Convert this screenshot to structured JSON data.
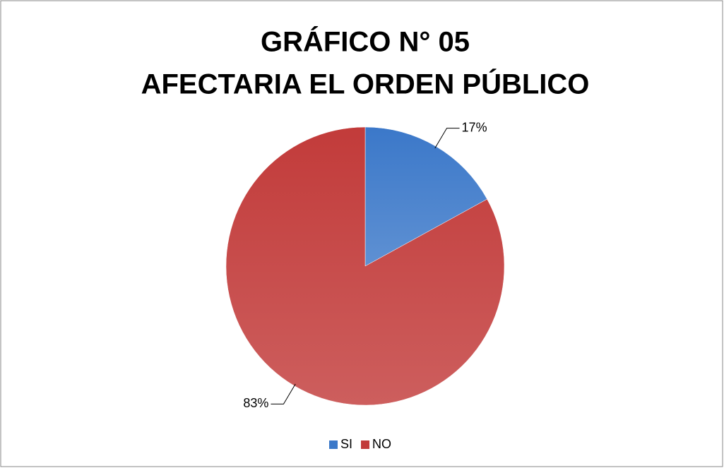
{
  "chart_data": {
    "type": "pie",
    "title": [
      "GRÁFICO N° 05",
      "AFECTARIA EL ORDEN PÚBLICO"
    ],
    "categories": [
      "SI",
      "NO"
    ],
    "values": [
      17,
      83
    ],
    "value_labels": [
      "17%",
      "83%"
    ],
    "colors": [
      "#3b78c9",
      "#c23b3a"
    ],
    "legend": "bottom"
  }
}
